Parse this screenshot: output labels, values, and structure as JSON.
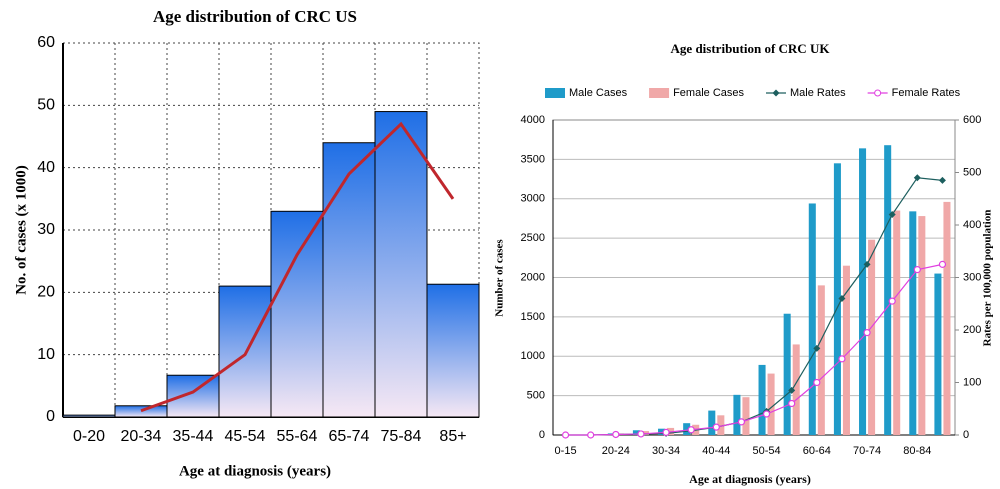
{
  "chart_data": [
    {
      "type": "bar",
      "title": "Age distribution of CRC US",
      "x_label": "Age at diagnosis (years)",
      "y_label": "No. of cases (x 1000)",
      "categories": [
        "0-20",
        "20-34",
        "35-44",
        "45-54",
        "55-64",
        "65-74",
        "75-84",
        "85+"
      ],
      "series": [
        {
          "kind": "bar",
          "color": "#1f6fe6",
          "values": [
            0.3,
            1.8,
            6.7,
            21,
            33,
            44,
            49,
            21.3
          ]
        },
        {
          "kind": "line",
          "color": "#c0272d",
          "values": [
            null,
            1,
            4,
            10,
            26,
            39,
            47,
            35
          ]
        }
      ],
      "ylim": [
        0,
        60
      ],
      "yticks": [
        0,
        10,
        20,
        30,
        40,
        50,
        60
      ],
      "grid": "both"
    },
    {
      "type": "bar",
      "title": "Age distribution of CRC UK",
      "x_label": "Age at diagnosis (years)",
      "y_label": "Number of cases",
      "y2_label": "Rates per 100,000 population",
      "categories": [
        "0-15",
        null,
        "20-24",
        null,
        "30-34",
        null,
        "40-44",
        null,
        "50-54",
        null,
        "60-64",
        null,
        "70-74",
        null,
        "80-84",
        null
      ],
      "series": [
        {
          "name": "Male Cases",
          "kind": "bar",
          "color": "#1f9bc9",
          "values": [
            0,
            5,
            20,
            60,
            80,
            150,
            310,
            510,
            890,
            1540,
            2940,
            3450,
            3640,
            3680,
            2840,
            2050
          ]
        },
        {
          "name": "Female Cases",
          "kind": "bar",
          "color": "#f0a8a8",
          "values": [
            0,
            5,
            20,
            50,
            90,
            130,
            250,
            480,
            780,
            1150,
            1900,
            2150,
            2480,
            2850,
            2780,
            2960
          ]
        },
        {
          "name": "Male Rates",
          "kind": "line",
          "axis": "y2",
          "color": "#1d5f5f",
          "marker": "diamond",
          "values": [
            0,
            0,
            1,
            2,
            3,
            8,
            15,
            25,
            45,
            85,
            165,
            260,
            325,
            420,
            490,
            485
          ]
        },
        {
          "name": "Female Rates",
          "kind": "line",
          "axis": "y2",
          "color": "#e040e0",
          "marker": "circle",
          "values": [
            0,
            0,
            1,
            2,
            5,
            10,
            15,
            25,
            40,
            60,
            100,
            145,
            195,
            255,
            315,
            325
          ]
        }
      ],
      "ylim": [
        0,
        4000
      ],
      "yticks": [
        0,
        500,
        1000,
        1500,
        2000,
        2500,
        3000,
        3500,
        4000
      ],
      "y2lim": [
        0,
        600
      ],
      "y2ticks": [
        0,
        100,
        200,
        300,
        400,
        500,
        600
      ],
      "grid": "y",
      "legend": "top"
    }
  ]
}
